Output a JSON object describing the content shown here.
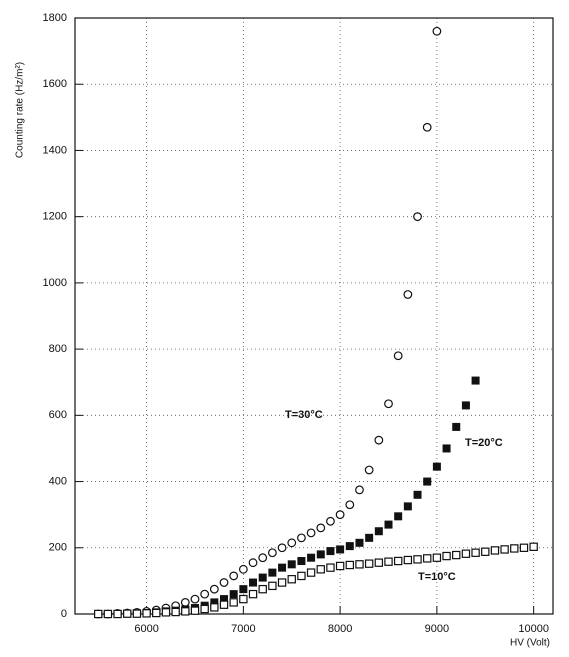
{
  "chart_data": {
    "type": "scatter",
    "xlabel": "HV (Volt)",
    "ylabel": "Counting rate (Hz/m²)",
    "xlim": [
      5260,
      10200
    ],
    "ylim": [
      0,
      1800
    ],
    "xticks": [
      6000,
      7000,
      8000,
      9000,
      10000
    ],
    "yticks": [
      0,
      200,
      400,
      600,
      800,
      1000,
      1200,
      1400,
      1600,
      1800
    ],
    "grid": true,
    "annotations": [
      "T=30°C",
      "T=20°C",
      "T=10°C"
    ],
    "series": [
      {
        "name": "T=30°C",
        "marker": "open-circle",
        "color": "#111",
        "x": [
          5500,
          5600,
          5700,
          5800,
          5900,
          6000,
          6100,
          6200,
          6300,
          6400,
          6500,
          6600,
          6700,
          6800,
          6900,
          7000,
          7100,
          7200,
          7300,
          7400,
          7500,
          7600,
          7700,
          7800,
          7900,
          8000,
          8100,
          8200,
          8300,
          8400,
          8500,
          8600,
          8700,
          8800,
          8900,
          9000
        ],
        "values": [
          0,
          0,
          2,
          3,
          5,
          8,
          12,
          18,
          25,
          35,
          45,
          60,
          75,
          95,
          115,
          135,
          155,
          170,
          185,
          200,
          215,
          230,
          245,
          260,
          280,
          300,
          330,
          375,
          435,
          525,
          635,
          780,
          965,
          1200,
          1470,
          1760
        ]
      },
      {
        "name": "T=20°C",
        "marker": "filled-square",
        "color": "#111",
        "x": [
          5500,
          5600,
          5700,
          5800,
          5900,
          6000,
          6100,
          6200,
          6300,
          6400,
          6500,
          6600,
          6700,
          6800,
          6900,
          7000,
          7100,
          7200,
          7300,
          7400,
          7500,
          7600,
          7700,
          7800,
          7900,
          8000,
          8100,
          8200,
          8300,
          8400,
          8500,
          8600,
          8700,
          8800,
          8900,
          9000,
          9100,
          9200,
          9300,
          9400
        ],
        "values": [
          0,
          0,
          0,
          1,
          2,
          3,
          5,
          8,
          10,
          14,
          18,
          25,
          35,
          45,
          60,
          75,
          95,
          110,
          125,
          140,
          150,
          160,
          170,
          180,
          190,
          195,
          205,
          215,
          230,
          250,
          270,
          295,
          325,
          360,
          400,
          445,
          500,
          565,
          630,
          705
        ]
      },
      {
        "name": "T=10°C",
        "marker": "open-square",
        "color": "#111",
        "x": [
          5500,
          5600,
          5700,
          5800,
          5900,
          6000,
          6100,
          6200,
          6300,
          6400,
          6500,
          6600,
          6700,
          6800,
          6900,
          7000,
          7100,
          7200,
          7300,
          7400,
          7500,
          7600,
          7700,
          7800,
          7900,
          8000,
          8100,
          8200,
          8300,
          8400,
          8500,
          8600,
          8700,
          8800,
          8900,
          9000,
          9100,
          9200,
          9300,
          9400,
          9500,
          9600,
          9700,
          9800,
          9900,
          10000
        ],
        "values": [
          0,
          0,
          0,
          1,
          1,
          2,
          3,
          5,
          6,
          8,
          10,
          15,
          20,
          28,
          35,
          45,
          60,
          75,
          85,
          95,
          105,
          115,
          125,
          135,
          140,
          145,
          148,
          150,
          152,
          155,
          158,
          160,
          163,
          165,
          168,
          170,
          175,
          178,
          182,
          185,
          188,
          192,
          195,
          198,
          200,
          203
        ]
      }
    ]
  }
}
